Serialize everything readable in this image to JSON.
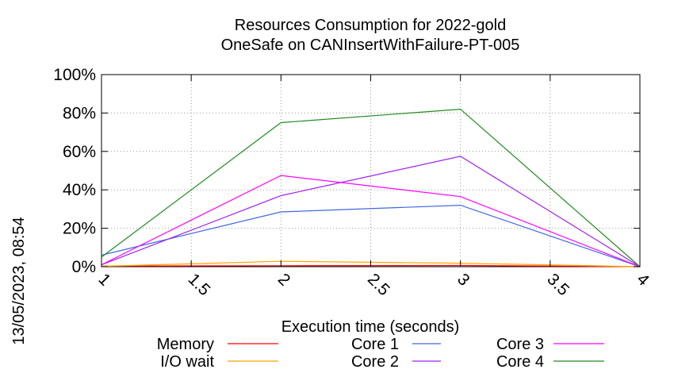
{
  "chart_data": {
    "type": "line",
    "title": [
      "Resources Consumption for 2022-gold",
      "OneSafe on CANInsertWithFailure-PT-005"
    ],
    "xlabel": "Execution time (seconds)",
    "ylabel": "",
    "side_label": "13/05/2023, 08:54",
    "xlim": [
      1,
      4
    ],
    "ylim": [
      0,
      100
    ],
    "x_ticks": [
      1,
      1.5,
      2,
      2.5,
      3,
      3.5,
      4
    ],
    "x_tick_labels": [
      "1",
      "1.5",
      "2",
      "2.5",
      "3",
      "3.5",
      "4"
    ],
    "y_ticks": [
      0,
      20,
      40,
      60,
      80,
      100
    ],
    "y_tick_labels": [
      "0%",
      "20%",
      "40%",
      "60%",
      "80%",
      "100%"
    ],
    "grid": true,
    "legend_position": "bottom",
    "x": [
      1,
      2,
      3,
      4
    ],
    "series": [
      {
        "name": "Memory",
        "color": "#ff0000",
        "values": [
          0.3,
          0.5,
          0.6,
          0
        ]
      },
      {
        "name": "I/O wait",
        "color": "#ffa500",
        "values": [
          0.2,
          2.8,
          1.8,
          0
        ]
      },
      {
        "name": "Core 1",
        "color": "#4169e1",
        "values": [
          6,
          28.5,
          32,
          0
        ]
      },
      {
        "name": "Core 2",
        "color": "#a020f0",
        "values": [
          1,
          37,
          57.5,
          0
        ]
      },
      {
        "name": "Core 3",
        "color": "#ff00ff",
        "values": [
          1,
          47.5,
          36.5,
          0
        ]
      },
      {
        "name": "Core 4",
        "color": "#228b22",
        "values": [
          5,
          75,
          82,
          0
        ]
      }
    ]
  }
}
